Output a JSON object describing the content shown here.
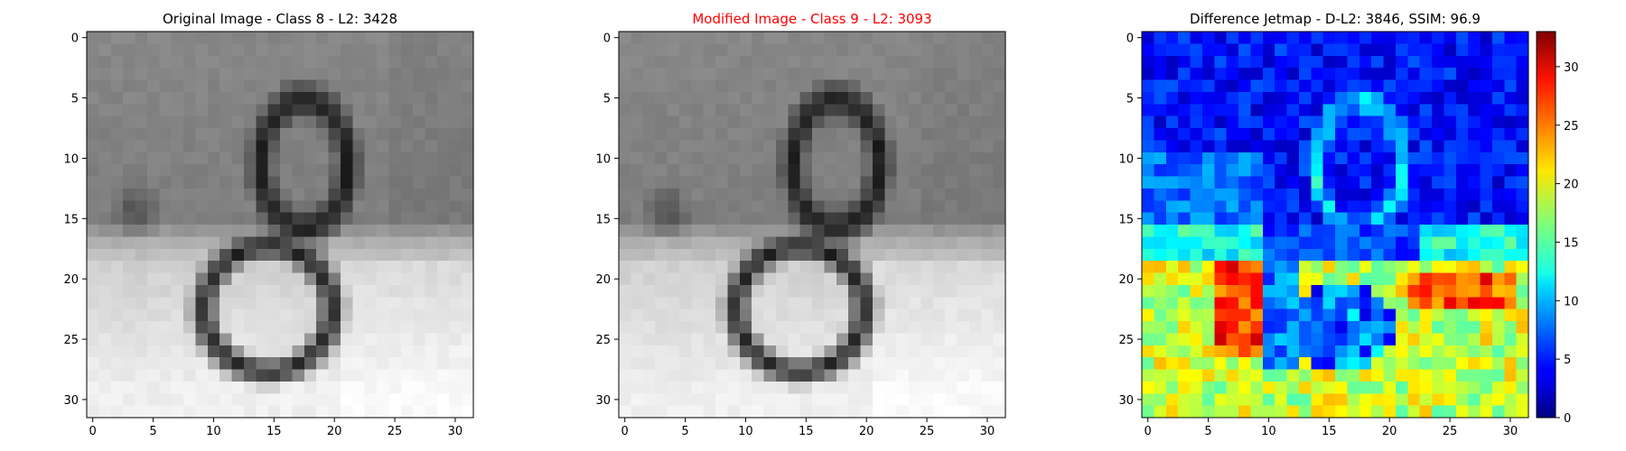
{
  "chart_data": [
    {
      "type": "heatmap",
      "colormap": "gray",
      "title": "Original Image - Class 8 - L2: 3428",
      "title_color": "#000000",
      "rows": 32,
      "cols": 32,
      "xlim": [
        -0.5,
        31.5
      ],
      "ylim": [
        31.5,
        -0.5
      ],
      "xticks": [
        0,
        5,
        10,
        15,
        20,
        25,
        30
      ],
      "yticks": [
        0,
        5,
        10,
        15,
        20,
        25,
        30
      ],
      "grid": false,
      "content": "photo of a dark handwritten-style digit 8 on a gray wall above a white/light-gray surface"
    },
    {
      "type": "heatmap",
      "colormap": "gray",
      "title": "Modified Image - Class 9 - L2: 3093",
      "title_color": "#ff0000",
      "rows": 32,
      "cols": 32,
      "xlim": [
        -0.5,
        31.5
      ],
      "ylim": [
        31.5,
        -0.5
      ],
      "xticks": [
        0,
        5,
        10,
        15,
        20,
        25,
        30
      ],
      "yticks": [
        0,
        5,
        10,
        15,
        20,
        25,
        30
      ],
      "grid": false,
      "content": "same digit image, slightly perturbed"
    },
    {
      "type": "heatmap",
      "colormap": "jet",
      "title": "Difference Jetmap - D-L2: 3846, SSIM: 96.9",
      "title_color": "#000000",
      "rows": 32,
      "cols": 32,
      "xlim": [
        -0.5,
        31.5
      ],
      "ylim": [
        31.5,
        -0.5
      ],
      "xticks": [
        0,
        5,
        10,
        15,
        20,
        25,
        30
      ],
      "yticks": [
        0,
        5,
        10,
        15,
        20,
        25,
        30
      ],
      "grid": false,
      "colorbar": {
        "min": 0,
        "max": 33,
        "ticks": [
          0,
          5,
          10,
          15,
          20,
          25,
          30
        ]
      },
      "content": "low difference (blue) across the upper wall, high difference (yellow-red) on the lower light surface"
    }
  ]
}
